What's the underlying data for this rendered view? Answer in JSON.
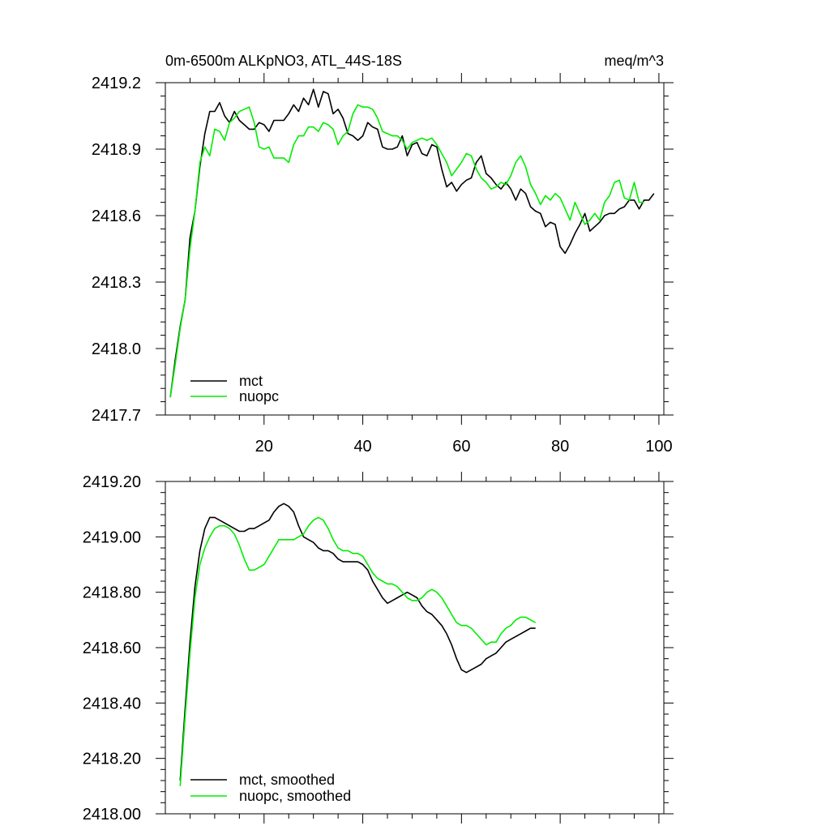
{
  "header": {
    "title": "0m-6500m ALKpNO3, ATL_44S-18S",
    "units": "meq/m^3"
  },
  "colors": {
    "mct": "#000000",
    "nuopc": "#00ee00"
  },
  "chart_data": [
    {
      "type": "line",
      "xlim": [
        0,
        101
      ],
      "ylim": [
        2417.7,
        2419.2
      ],
      "x_ticks": [
        20,
        40,
        60,
        80,
        100
      ],
      "x_tick_labels": [
        "20",
        "40",
        "60",
        "80",
        "100"
      ],
      "y_ticks": [
        2417.7,
        2418.0,
        2418.3,
        2418.6,
        2418.9,
        2419.2
      ],
      "y_tick_labels": [
        "2417.7",
        "2418.0",
        "2418.3",
        "2418.6",
        "2418.9",
        "2419.2"
      ],
      "grid": false,
      "legend": "bottom-left",
      "series": [
        {
          "name": "mct",
          "color": "#000000",
          "x_start": 1,
          "values": [
            2417.78,
            2417.95,
            2418.1,
            2418.22,
            2418.5,
            2418.62,
            2418.82,
            2418.97,
            2419.07,
            2419.07,
            2419.11,
            2419.05,
            2419.02,
            2419.07,
            2419.03,
            2419.01,
            2418.99,
            2418.99,
            2419.02,
            2419.01,
            2418.98,
            2419.03,
            2419.03,
            2419.03,
            2419.06,
            2419.1,
            2419.07,
            2419.13,
            2419.1,
            2419.17,
            2419.09,
            2419.16,
            2419.15,
            2419.06,
            2419.08,
            2419.04,
            2418.97,
            2418.96,
            2418.94,
            2418.96,
            2419.02,
            2419.0,
            2418.99,
            2418.91,
            2418.9,
            2418.9,
            2418.91,
            2418.96,
            2418.87,
            2418.92,
            2418.93,
            2418.88,
            2418.87,
            2418.92,
            2418.91,
            2418.81,
            2418.73,
            2418.75,
            2418.71,
            2418.74,
            2418.76,
            2418.77,
            2418.84,
            2418.87,
            2418.79,
            2418.77,
            2418.74,
            2418.72,
            2418.75,
            2418.72,
            2418.67,
            2418.72,
            2418.7,
            2418.64,
            2418.62,
            2418.61,
            2418.55,
            2418.57,
            2418.56,
            2418.46,
            2418.43,
            2418.47,
            2418.52,
            2418.56,
            2418.61,
            2418.53,
            2418.55,
            2418.57,
            2418.6,
            2418.61,
            2418.61,
            2418.63,
            2418.64,
            2418.67,
            2418.67,
            2418.63,
            2418.67,
            2418.67,
            2418.7
          ]
        },
        {
          "name": "nuopc",
          "color": "#00ee00",
          "x_start": 1,
          "values": [
            2417.78,
            2417.93,
            2418.09,
            2418.22,
            2418.45,
            2418.62,
            2418.84,
            2418.91,
            2418.87,
            2418.99,
            2418.98,
            2418.94,
            2419.02,
            2419.04,
            2419.07,
            2419.08,
            2419.09,
            2419.02,
            2418.91,
            2418.9,
            2418.91,
            2418.86,
            2418.86,
            2418.86,
            2418.84,
            2418.92,
            2418.96,
            2418.96,
            2419.0,
            2419.0,
            2418.98,
            2419.02,
            2419.01,
            2418.99,
            2418.92,
            2418.96,
            2418.98,
            2419.06,
            2419.1,
            2419.09,
            2419.09,
            2419.08,
            2419.04,
            2418.98,
            2418.97,
            2418.96,
            2418.96,
            2418.94,
            2418.9,
            2418.93,
            2418.94,
            2418.95,
            2418.94,
            2418.95,
            2418.92,
            2418.88,
            2418.84,
            2418.78,
            2418.81,
            2418.84,
            2418.88,
            2418.87,
            2418.81,
            2418.77,
            2418.75,
            2418.72,
            2418.73,
            2418.75,
            2418.74,
            2418.78,
            2418.84,
            2418.87,
            2418.82,
            2418.74,
            2418.7,
            2418.65,
            2418.69,
            2418.67,
            2418.7,
            2418.68,
            2418.63,
            2418.58,
            2418.66,
            2418.61,
            2418.56,
            2418.58,
            2418.61,
            2418.58,
            2418.66,
            2418.69,
            2418.75,
            2418.76,
            2418.68,
            2418.67,
            2418.75,
            2418.66,
            2418.66
          ]
        }
      ]
    },
    {
      "type": "line",
      "xlim": [
        0,
        101
      ],
      "ylim": [
        2418.0,
        2419.2
      ],
      "x_ticks": [
        20,
        40,
        60,
        80,
        100
      ],
      "x_tick_labels": [],
      "y_ticks": [
        2418.0,
        2418.2,
        2418.4,
        2418.6,
        2418.8,
        2419.0,
        2419.2
      ],
      "y_tick_labels": [
        "2418.00",
        "2418.20",
        "2418.40",
        "2418.60",
        "2418.80",
        "2419.00",
        "2419.20"
      ],
      "grid": false,
      "legend": "bottom-left",
      "series": [
        {
          "name": "mct, smoothed",
          "color": "#000000",
          "x_start": 3,
          "values": [
            2418.12,
            2418.38,
            2418.62,
            2418.82,
            2418.95,
            2419.03,
            2419.07,
            2419.07,
            2419.06,
            2419.05,
            2419.04,
            2419.03,
            2419.02,
            2419.02,
            2419.03,
            2419.03,
            2419.04,
            2419.05,
            2419.06,
            2419.09,
            2419.11,
            2419.12,
            2419.11,
            2419.09,
            2419.04,
            2419.0,
            2418.99,
            2418.98,
            2418.96,
            2418.95,
            2418.95,
            2418.94,
            2418.92,
            2418.91,
            2418.91,
            2418.91,
            2418.91,
            2418.9,
            2418.88,
            2418.84,
            2418.81,
            2418.78,
            2418.76,
            2418.77,
            2418.78,
            2418.79,
            2418.8,
            2418.79,
            2418.78,
            2418.75,
            2418.73,
            2418.72,
            2418.7,
            2418.68,
            2418.65,
            2418.61,
            2418.56,
            2418.52,
            2418.51,
            2418.52,
            2418.53,
            2418.54,
            2418.56,
            2418.57,
            2418.58,
            2418.6,
            2418.62,
            2418.63,
            2418.64,
            2418.65,
            2418.66,
            2418.67,
            2418.67
          ]
        },
        {
          "name": "nuopc, smoothed",
          "color": "#00ee00",
          "x_start": 3,
          "values": [
            2418.1,
            2418.35,
            2418.58,
            2418.78,
            2418.9,
            2418.96,
            2419.0,
            2419.03,
            2419.04,
            2419.04,
            2419.03,
            2419.01,
            2418.97,
            2418.92,
            2418.88,
            2418.88,
            2418.89,
            2418.9,
            2418.93,
            2418.96,
            2418.99,
            2418.99,
            2418.99,
            2418.99,
            2419.0,
            2419.01,
            2419.04,
            2419.06,
            2419.07,
            2419.06,
            2419.03,
            2418.99,
            2418.96,
            2418.95,
            2418.95,
            2418.94,
            2418.94,
            2418.93,
            2418.9,
            2418.87,
            2418.85,
            2418.84,
            2418.83,
            2418.83,
            2418.82,
            2418.8,
            2418.78,
            2418.77,
            2418.77,
            2418.78,
            2418.8,
            2418.81,
            2418.8,
            2418.78,
            2418.75,
            2418.72,
            2418.69,
            2418.68,
            2418.68,
            2418.67,
            2418.65,
            2418.63,
            2418.61,
            2418.62,
            2418.62,
            2418.65,
            2418.67,
            2418.68,
            2418.7,
            2418.71,
            2418.71,
            2418.7,
            2418.69
          ]
        }
      ]
    }
  ]
}
